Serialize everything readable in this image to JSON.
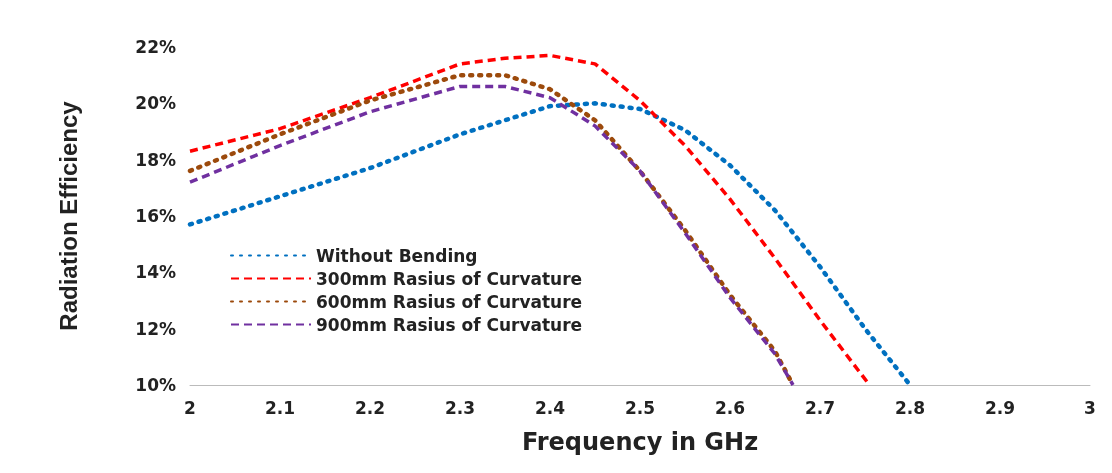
{
  "chart_data": {
    "type": "line",
    "xlabel": "Frequency in GHz",
    "ylabel": "Radiation Efficiency",
    "xlim": [
      2,
      3
    ],
    "xticks": [
      2,
      2.1,
      2.2,
      2.3,
      2.4,
      2.5,
      2.6,
      2.7,
      2.8,
      2.9,
      3
    ],
    "ylim": [
      10,
      22
    ],
    "yticks": [
      {
        "value": 10,
        "label": "10%"
      },
      {
        "value": 12,
        "label": "12%"
      },
      {
        "value": 14,
        "label": "14%"
      },
      {
        "value": 16,
        "label": "16%"
      },
      {
        "value": 18,
        "label": "18%"
      },
      {
        "value": 20,
        "label": "20%"
      },
      {
        "value": 22,
        "label": "22%"
      }
    ],
    "grid": false,
    "legend": "left",
    "marker": "none",
    "series": [
      {
        "name": "Without Bending",
        "color": "#0070c0",
        "line_style": "dotted",
        "x": [
          2,
          2.1,
          2.2,
          2.3,
          2.4,
          2.45,
          2.5,
          2.55,
          2.6,
          2.65,
          2.7,
          2.75,
          2.8
        ],
        "values": [
          15.7,
          16.7,
          17.7,
          18.9,
          19.9,
          20.0,
          19.8,
          19.05,
          17.8,
          16.2,
          14.2,
          12.0,
          10.0
        ]
      },
      {
        "name": "300mm Rasius of Curvature",
        "color": "#ff0000",
        "line_style": "dashed",
        "x": [
          2,
          2.1,
          2.2,
          2.3,
          2.35,
          2.4,
          2.45,
          2.5,
          2.55,
          2.6,
          2.65,
          2.7,
          2.755
        ],
        "values": [
          18.3,
          19.1,
          20.2,
          21.4,
          21.6,
          21.7,
          21.4,
          20.1,
          18.5,
          16.6,
          14.5,
          12.3,
          10.0
        ]
      },
      {
        "name": "600mm Rasius of Curvature",
        "color": "#9c4a0c",
        "line_style": "dotted",
        "x": [
          2,
          2.1,
          2.2,
          2.3,
          2.35,
          2.4,
          2.45,
          2.5,
          2.55,
          2.6,
          2.65,
          2.67
        ],
        "values": [
          17.6,
          18.9,
          20.1,
          21.0,
          21.0,
          20.5,
          19.4,
          17.6,
          15.5,
          13.2,
          11.2,
          10.0
        ]
      },
      {
        "name": "900mm Rasius of Curvature",
        "color": "#7030a0",
        "line_style": "dashed",
        "x": [
          2,
          2.1,
          2.2,
          2.3,
          2.35,
          2.4,
          2.45,
          2.5,
          2.55,
          2.6,
          2.65,
          2.67
        ],
        "values": [
          17.2,
          18.5,
          19.7,
          20.6,
          20.6,
          20.2,
          19.2,
          17.6,
          15.4,
          13.1,
          11.1,
          10.0
        ]
      }
    ]
  }
}
